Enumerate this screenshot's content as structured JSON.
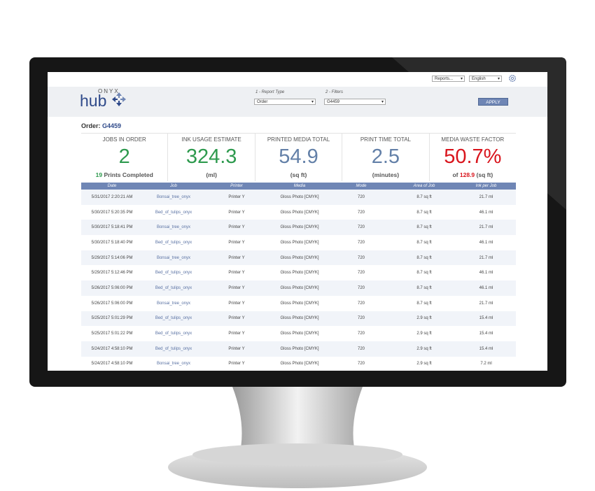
{
  "toolbar": {
    "reports": "Reports...",
    "language": "English"
  },
  "logo": {
    "brand": "ONYX",
    "product": "hub"
  },
  "filters": {
    "report_type_label": "1 - Report Type",
    "report_type": "Order",
    "filters_label": "2 - Filters",
    "filter_value": "G4459",
    "apply": "APPLY"
  },
  "order": {
    "label": "Order:",
    "id": "G4459"
  },
  "stats": [
    {
      "label": "JOBS IN ORDER",
      "value": "2",
      "note_value": "19",
      "note": "Prints Completed"
    },
    {
      "label": "INK USAGE ESTIMATE",
      "value": "324.3",
      "unit": "(ml)"
    },
    {
      "label": "PRINTED MEDIA TOTAL",
      "value": "54.9",
      "unit": "(sq ft)"
    },
    {
      "label": "PRINT TIME TOTAL",
      "value": "2.5",
      "unit": "(minutes)"
    },
    {
      "label": "MEDIA WASTE FACTOR",
      "value": "50.7%",
      "note_prefix": "of",
      "note_value": "128.9",
      "unit": "(sq ft)"
    }
  ],
  "table": {
    "columns": [
      "Date",
      "Job",
      "Printer",
      "Media",
      "Mode",
      "Area of Job",
      "Ink per Job"
    ],
    "rows": [
      [
        "5/31/2017 2:20:21 AM",
        "Bonsai_tree_onyx",
        "Printer Y",
        "Gloss Photo [CMYK]",
        "720",
        "8.7 sq ft",
        "21.7 ml"
      ],
      [
        "5/30/2017 5:20:35 PM",
        "Bed_of_tulips_onyx",
        "Printer Y",
        "Gloss Photo [CMYK]",
        "720",
        "8.7 sq ft",
        "46.1 ml"
      ],
      [
        "5/30/2017 5:18:41 PM",
        "Bonsai_tree_onyx",
        "Printer Y",
        "Gloss Photo [CMYK]",
        "720",
        "8.7 sq ft",
        "21.7 ml"
      ],
      [
        "5/30/2017 5:18:40 PM",
        "Bed_of_tulips_onyx",
        "Printer Y",
        "Gloss Photo [CMYK]",
        "720",
        "8.7 sq ft",
        "46.1 ml"
      ],
      [
        "5/29/2017 5:14:06 PM",
        "Bonsai_tree_onyx",
        "Printer Y",
        "Gloss Photo [CMYK]",
        "720",
        "8.7 sq ft",
        "21.7 ml"
      ],
      [
        "5/29/2017 5:12:46 PM",
        "Bed_of_tulips_onyx",
        "Printer Y",
        "Gloss Photo [CMYK]",
        "720",
        "8.7 sq ft",
        "46.1 ml"
      ],
      [
        "5/26/2017 5:06:00 PM",
        "Bed_of_tulips_onyx",
        "Printer Y",
        "Gloss Photo [CMYK]",
        "720",
        "8.7 sq ft",
        "46.1 ml"
      ],
      [
        "5/26/2017 5:06:00 PM",
        "Bonsai_tree_onyx",
        "Printer Y",
        "Gloss Photo [CMYK]",
        "720",
        "8.7 sq ft",
        "21.7 ml"
      ],
      [
        "5/25/2017 5:01:29 PM",
        "Bed_of_tulips_onyx",
        "Printer Y",
        "Gloss Photo [CMYK]",
        "720",
        "2.9 sq ft",
        "15.4 ml"
      ],
      [
        "5/25/2017 5:01:22 PM",
        "Bed_of_tulips_onyx",
        "Printer Y",
        "Gloss Photo [CMYK]",
        "720",
        "2.9 sq ft",
        "15.4 ml"
      ],
      [
        "5/24/2017 4:58:10 PM",
        "Bed_of_tulips_onyx",
        "Printer Y",
        "Gloss Photo [CMYK]",
        "720",
        "2.9 sq ft",
        "15.4 ml"
      ],
      [
        "5/24/2017 4:58:10 PM",
        "Bonsai_tree_onyx",
        "Printer Y",
        "Gloss Photo [CMYK]",
        "720",
        "2.9 sq ft",
        "7.2 ml"
      ]
    ]
  }
}
